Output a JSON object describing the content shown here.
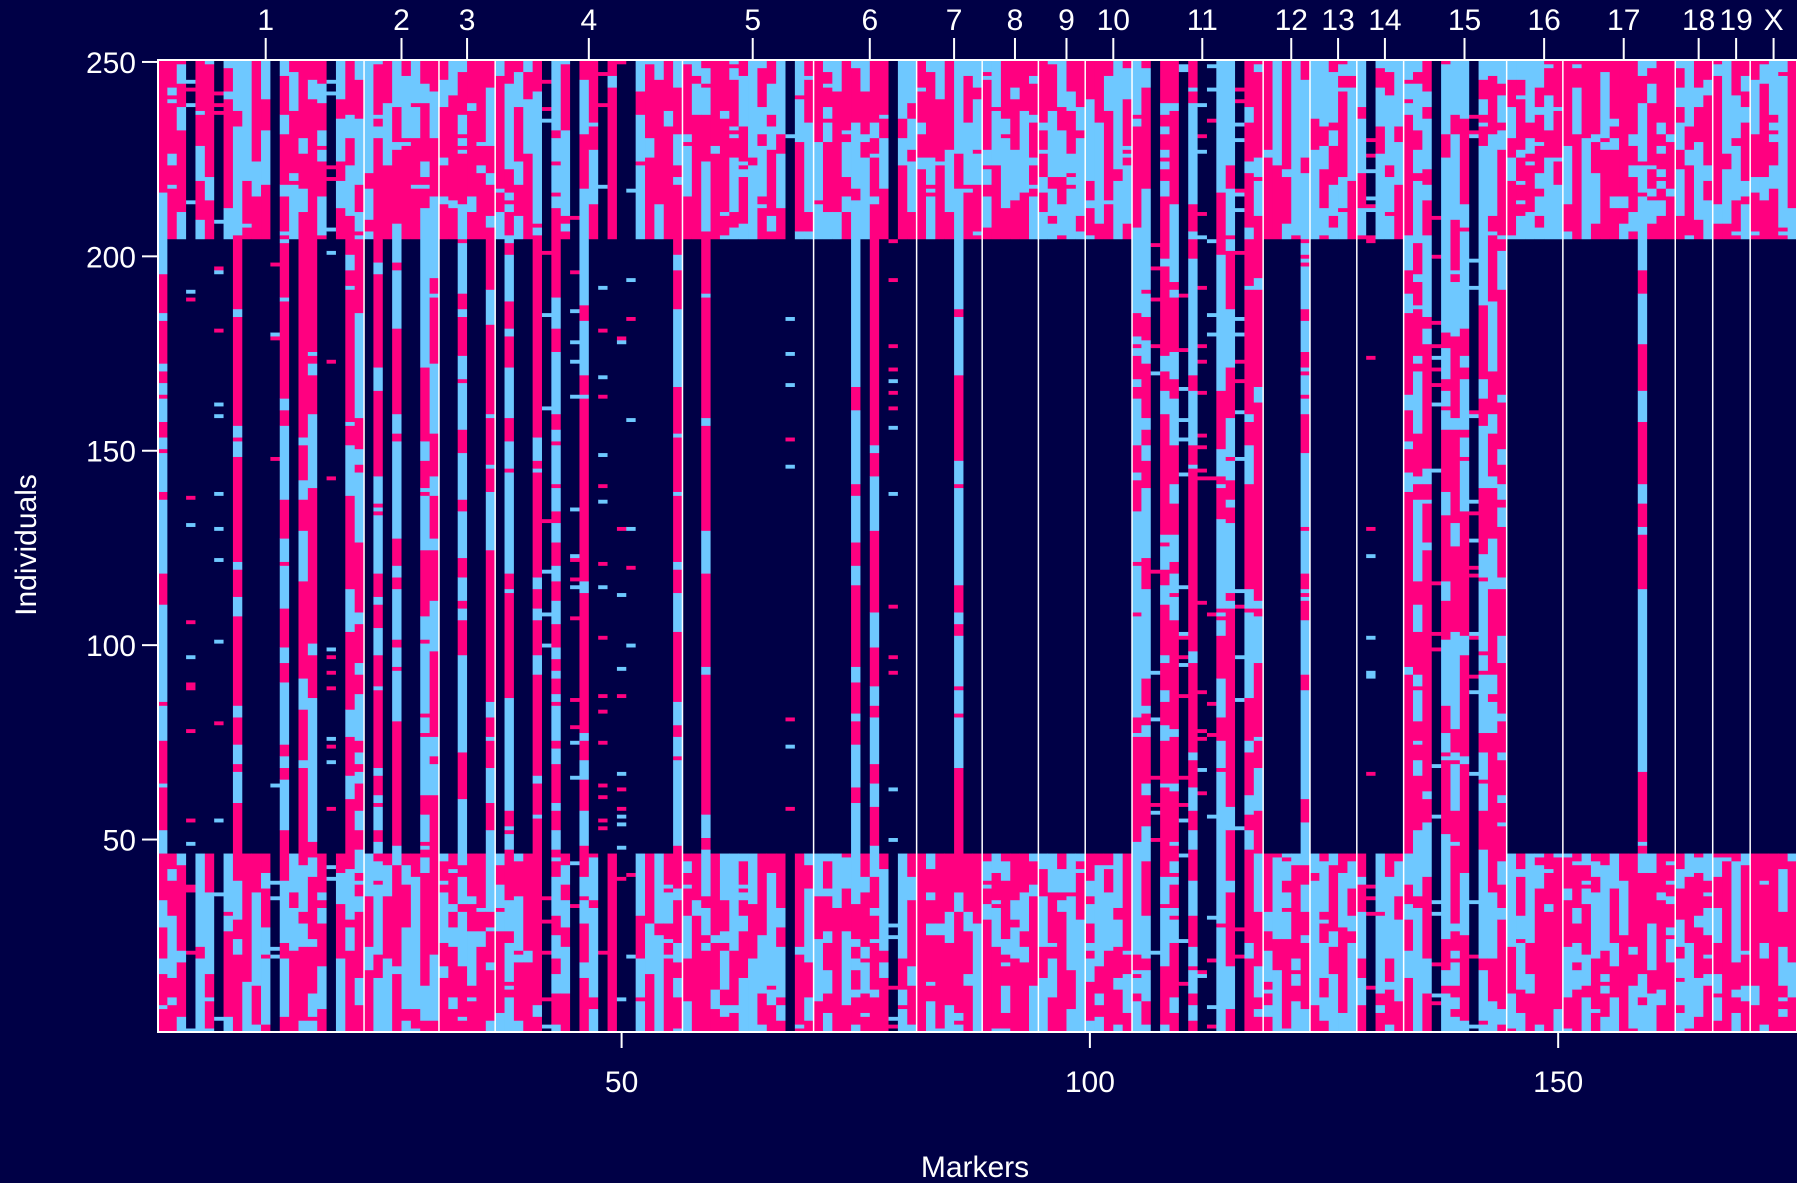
{
  "chart_data": {
    "type": "heatmap",
    "title": "",
    "xlabel": "Markers",
    "ylabel": "Individuals",
    "xlim": [
      1,
      175
    ],
    "ylim": [
      1,
      250
    ],
    "x_ticks": [
      50,
      100,
      150
    ],
    "y_ticks": [
      50,
      100,
      150,
      200,
      250
    ],
    "chromosomes": [
      {
        "label": "1",
        "start_marker": 1,
        "end_marker": 22,
        "tick_marker": 12
      },
      {
        "label": "2",
        "start_marker": 23,
        "end_marker": 30,
        "tick_marker": 26.5
      },
      {
        "label": "3",
        "start_marker": 31,
        "end_marker": 36,
        "tick_marker": 33.5
      },
      {
        "label": "4",
        "start_marker": 37,
        "end_marker": 56,
        "tick_marker": 46.5
      },
      {
        "label": "5",
        "start_marker": 57,
        "end_marker": 70,
        "tick_marker": 64
      },
      {
        "label": "6",
        "start_marker": 71,
        "end_marker": 81,
        "tick_marker": 76.5
      },
      {
        "label": "7",
        "start_marker": 82,
        "end_marker": 88,
        "tick_marker": 85.5
      },
      {
        "label": "8",
        "start_marker": 89,
        "end_marker": 94,
        "tick_marker": 92
      },
      {
        "label": "9",
        "start_marker": 95,
        "end_marker": 99,
        "tick_marker": 97.5
      },
      {
        "label": "10",
        "start_marker": 100,
        "end_marker": 104,
        "tick_marker": 102.5
      },
      {
        "label": "11",
        "start_marker": 105,
        "end_marker": 118,
        "tick_marker": 112
      },
      {
        "label": "12",
        "start_marker": 119,
        "end_marker": 123,
        "tick_marker": 121.5
      },
      {
        "label": "13",
        "start_marker": 124,
        "end_marker": 128,
        "tick_marker": 126.5
      },
      {
        "label": "14",
        "start_marker": 129,
        "end_marker": 133,
        "tick_marker": 131.5
      },
      {
        "label": "15",
        "start_marker": 134,
        "end_marker": 144,
        "tick_marker": 140
      },
      {
        "label": "16",
        "start_marker": 145,
        "end_marker": 150,
        "tick_marker": 148.5
      },
      {
        "label": "17",
        "start_marker": 151,
        "end_marker": 162,
        "tick_marker": 157
      },
      {
        "label": "18",
        "start_marker": 163,
        "end_marker": 166,
        "tick_marker": 165
      },
      {
        "label": "19",
        "start_marker": 167,
        "end_marker": 170,
        "tick_marker": 169
      },
      {
        "label": "X",
        "start_marker": 171,
        "end_marker": 175,
        "tick_marker": 173
      }
    ],
    "genotype_colors": {
      "AA": "#ff0080",
      "AB": "#6ec8ff",
      "missing": "#000046"
    },
    "column_groups": {
      "mostly_missing_middle": [
        2,
        3,
        5,
        6,
        8,
        10,
        11,
        12,
        15,
        18,
        20,
        23,
        25,
        27,
        28,
        31,
        32,
        34,
        35,
        37,
        39,
        40,
        44,
        47,
        49,
        52,
        53,
        54,
        55,
        57,
        58,
        60,
        61,
        62,
        63,
        64,
        65,
        66,
        67,
        69,
        70,
        71,
        72,
        73,
        74,
        76,
        78,
        80,
        81,
        82,
        83,
        84,
        85,
        87,
        88,
        89,
        90,
        91,
        92,
        93,
        94,
        95,
        96,
        97,
        98,
        99,
        100,
        101,
        102,
        103,
        104,
        119,
        120,
        121,
        122,
        124,
        125,
        126,
        127,
        128,
        129,
        130,
        131,
        132,
        133,
        145,
        146,
        147,
        148,
        149,
        150,
        151,
        152,
        153,
        154,
        155,
        156,
        157,
        158,
        160,
        161,
        162,
        163,
        164,
        165,
        166,
        167,
        168,
        169,
        170,
        171,
        172,
        173,
        174,
        175
      ],
      "missing_all_rows": [
        4,
        7,
        13,
        19,
        42,
        45,
        48,
        50,
        51,
        68,
        79,
        107,
        110,
        112,
        113,
        116,
        130,
        137,
        141
      ],
      "row_block_bounds": [
        47,
        204
      ]
    }
  },
  "background_color": "#000046",
  "foreground_color": "#ffffff"
}
